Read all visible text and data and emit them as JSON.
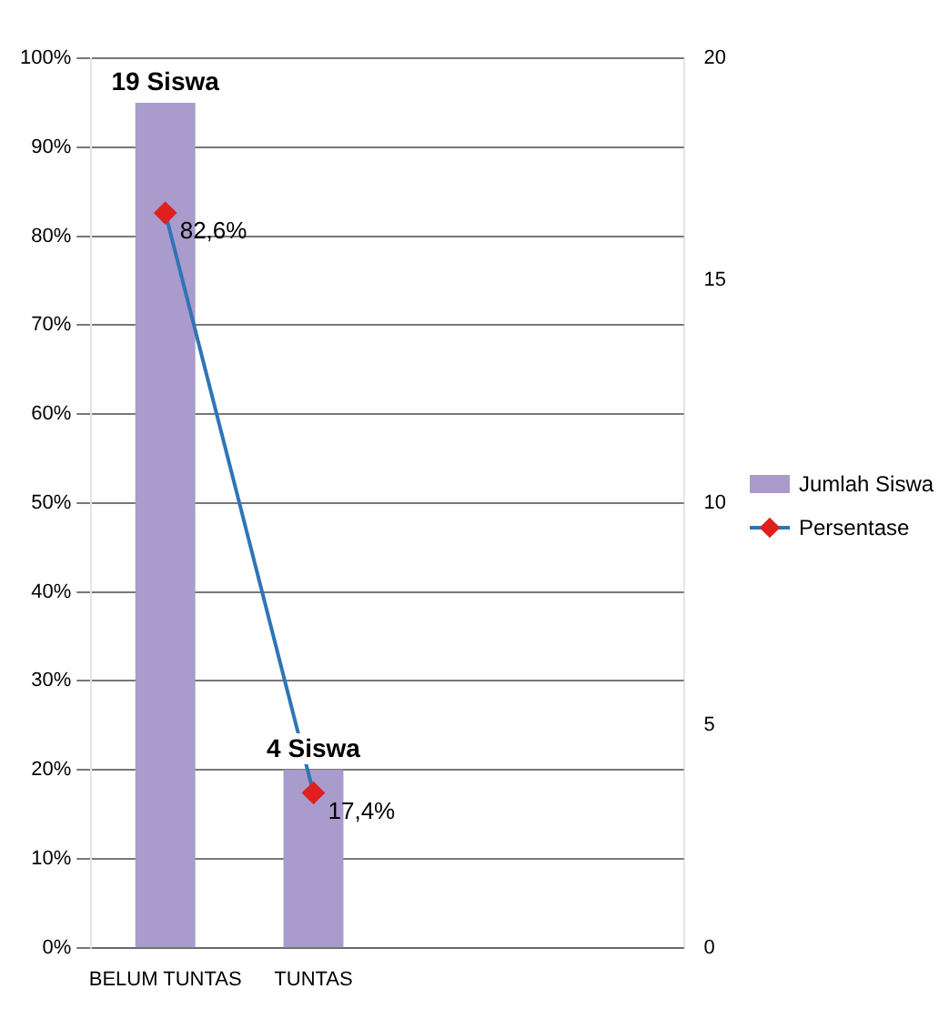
{
  "chart_data": {
    "type": "bar",
    "categories": [
      "BELUM TUNTAS",
      "TUNTAS",
      null,
      null
    ],
    "series": [
      {
        "name": "Jumlah Siswa",
        "axis": "y2",
        "color": "#a99bcb",
        "values": [
          19,
          4,
          null,
          null
        ],
        "value_labels": [
          "19 Siswa",
          "4 Siswa",
          null,
          null
        ]
      },
      {
        "name": "Persentase",
        "type": "line",
        "axis": "y",
        "color": "#2e75b6",
        "colors": [
          "#e02020",
          "#e02020",
          null,
          null
        ],
        "values": [
          82.6,
          17.4,
          null,
          null
        ],
        "value_labels": [
          "82,6%",
          "17,4%",
          null,
          null
        ]
      }
    ],
    "ylim": [
      0,
      100
    ],
    "yticks": [
      {
        "value": 0,
        "label": "0%"
      },
      {
        "value": 10,
        "label": "10%"
      },
      {
        "value": 20,
        "label": "20%"
      },
      {
        "value": 30,
        "label": "30%"
      },
      {
        "value": 40,
        "label": "40%"
      },
      {
        "value": 50,
        "label": "50%"
      },
      {
        "value": 60,
        "label": "60%"
      },
      {
        "value": 70,
        "label": "70%"
      },
      {
        "value": 80,
        "label": "80%"
      },
      {
        "value": 90,
        "label": "90%"
      },
      {
        "value": 100,
        "label": "100%"
      }
    ],
    "y2lim": [
      0,
      20
    ],
    "y2ticks": [
      0,
      5,
      10,
      15,
      20
    ],
    "grid": "y",
    "legend": "right",
    "marker": "diamond",
    "line_style": "solid"
  }
}
